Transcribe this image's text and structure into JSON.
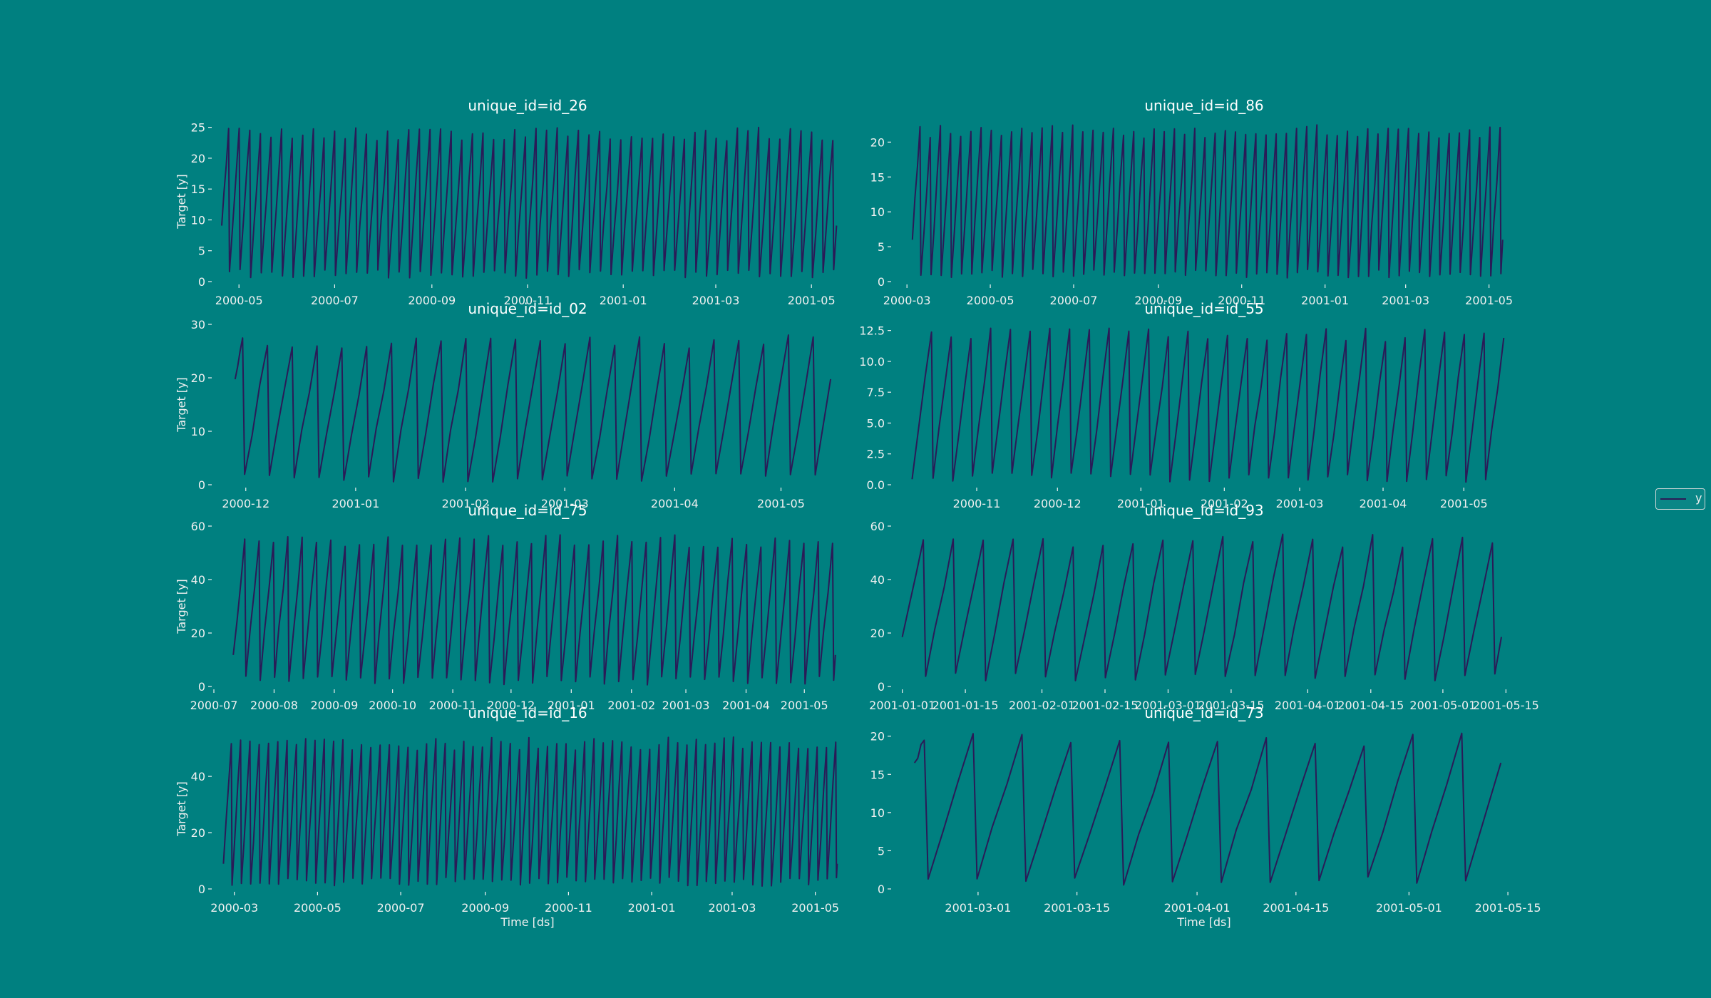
{
  "colors": {
    "background": "#008080",
    "line": "#2a1b57",
    "text": "#f0f0f0"
  },
  "legend": {
    "label": "y"
  },
  "chart_data": [
    {
      "type": "line",
      "title": "unique_id=id_26",
      "xlabel": "",
      "ylabel": "Target [y]",
      "ylim": [
        0,
        26
      ],
      "yticks": [
        0,
        5,
        10,
        15,
        20,
        25
      ],
      "ytick_labels": [
        "0",
        "5",
        "10",
        "15",
        "20",
        "25"
      ],
      "xlim": [
        "2000-04-15",
        "2001-05-20"
      ],
      "xticks": [
        "2000-05-01",
        "2000-07-01",
        "2000-09-01",
        "2000-11-01",
        "2001-01-01",
        "2001-03-01",
        "2001-05-01"
      ],
      "xtick_labels": [
        "2000-05",
        "2000-07",
        "2000-09",
        "2000-11",
        "2001-01",
        "2001-03",
        "2001-05"
      ],
      "x_start": "2000-04-20",
      "x_end": "2001-05-17",
      "cycles": 58,
      "wave_min": 0.5,
      "wave_max": 25,
      "phase": 0.35
    },
    {
      "type": "line",
      "title": "unique_id=id_86",
      "xlabel": "",
      "ylabel": "",
      "ylim": [
        0,
        23
      ],
      "yticks": [
        0,
        5,
        10,
        15,
        20
      ],
      "ytick_labels": [
        "0",
        "5",
        "10",
        "15",
        "20"
      ],
      "xlim": [
        "2000-02-20",
        "2001-05-20"
      ],
      "xticks": [
        "2000-03-01",
        "2000-05-01",
        "2000-07-01",
        "2000-09-01",
        "2000-11-01",
        "2001-01-01",
        "2001-03-01",
        "2001-05-01"
      ],
      "xtick_labels": [
        "2000-03",
        "2000-05",
        "2000-07",
        "2000-09",
        "2000-11",
        "2001-01",
        "2001-03",
        "2001-05"
      ],
      "x_start": "2000-03-05",
      "x_end": "2001-05-11",
      "cycles": 58,
      "wave_min": 0.5,
      "wave_max": 22.5,
      "phase": 0.25
    },
    {
      "type": "line",
      "title": "unique_id=id_02",
      "xlabel": "",
      "ylabel": "Target [y]",
      "ylim": [
        0,
        30
      ],
      "yticks": [
        0,
        10,
        20,
        30
      ],
      "ytick_labels": [
        "0",
        "10",
        "20",
        "30"
      ],
      "xlim": [
        "2000-11-22",
        "2001-05-18"
      ],
      "xticks": [
        "2000-12-01",
        "2001-01-01",
        "2001-02-01",
        "2001-03-01",
        "2001-04-01",
        "2001-05-01"
      ],
      "xtick_labels": [
        "2000-12",
        "2001-01",
        "2001-02",
        "2001-03",
        "2001-04",
        "2001-05"
      ],
      "x_start": "2000-11-28",
      "x_end": "2001-05-15",
      "cycles": 24,
      "wave_min": 0.5,
      "wave_max": 28,
      "phase": 0.7
    },
    {
      "type": "line",
      "title": "unique_id=id_55",
      "xlabel": "",
      "ylabel": "",
      "ylim": [
        0,
        13
      ],
      "yticks": [
        0,
        2.5,
        5,
        7.5,
        10,
        12.5
      ],
      "ytick_labels": [
        "0.0",
        "2.5",
        "5.0",
        "7.5",
        "10.0",
        "12.5"
      ],
      "xlim": [
        "2000-10-01",
        "2001-05-20"
      ],
      "xticks": [
        "2000-11-01",
        "2000-12-01",
        "2001-01-01",
        "2001-02-01",
        "2001-03-01",
        "2001-04-01",
        "2001-05-01"
      ],
      "xtick_labels": [
        "2000-11",
        "2000-12",
        "2001-01",
        "2001-02",
        "2001-03",
        "2001-04",
        "2001-05"
      ],
      "x_start": "2000-10-08",
      "x_end": "2001-05-16",
      "cycles": 30,
      "wave_min": 0.2,
      "wave_max": 12.7,
      "phase": 0.02
    },
    {
      "type": "line",
      "title": "unique_id=id_75",
      "xlabel": "",
      "ylabel": "Target [y]",
      "ylim": [
        0,
        60
      ],
      "yticks": [
        0,
        20,
        40,
        60
      ],
      "ytick_labels": [
        "0",
        "20",
        "40",
        "60"
      ],
      "xlim": [
        "2000-07-01",
        "2001-05-20"
      ],
      "xticks": [
        "2000-07-01",
        "2000-08-01",
        "2000-09-01",
        "2000-10-01",
        "2000-11-01",
        "2000-12-01",
        "2001-01-01",
        "2001-02-01",
        "2001-03-01",
        "2001-04-01",
        "2001-05-01"
      ],
      "xtick_labels": [
        "2000-07",
        "2000-08",
        "2000-09",
        "2000-10",
        "2000-11",
        "2000-12",
        "2001-01",
        "2001-02",
        "2001-03",
        "2001-04",
        "2001-05"
      ],
      "x_start": "2000-07-11",
      "x_end": "2001-05-17",
      "cycles": 42,
      "wave_min": 0.5,
      "wave_max": 57,
      "phase": 0.2
    },
    {
      "type": "line",
      "title": "unique_id=id_93",
      "xlabel": "",
      "ylabel": "",
      "ylim": [
        0,
        60
      ],
      "yticks": [
        0,
        20,
        40,
        60
      ],
      "ytick_labels": [
        "0",
        "20",
        "40",
        "60"
      ],
      "xlim": [
        "2000-12-30",
        "2001-05-17"
      ],
      "xticks": [
        "2001-01-01",
        "2001-01-15",
        "2001-02-01",
        "2001-02-15",
        "2001-03-01",
        "2001-03-15",
        "2001-04-01",
        "2001-04-15",
        "2001-05-01",
        "2001-05-15"
      ],
      "xtick_labels": [
        "2001-01-01",
        "2001-01-15",
        "2001-02-01",
        "2001-02-15",
        "2001-03-01",
        "2001-03-15",
        "2001-04-01",
        "2001-04-15",
        "2001-05-01",
        "2001-05-15"
      ],
      "x_start": "2001-01-01",
      "x_end": "2001-05-14",
      "cycles": 20,
      "wave_min": 2,
      "wave_max": 57,
      "phase": 0.3
    },
    {
      "type": "line",
      "title": "unique_id=id_16",
      "xlabel": "Time [ds]",
      "ylabel": "Target [y]",
      "ylim": [
        0,
        57
      ],
      "yticks": [
        0,
        20,
        40
      ],
      "ytick_labels": [
        "0",
        "20",
        "40"
      ],
      "xlim": [
        "2000-02-15",
        "2001-05-20"
      ],
      "xticks": [
        "2000-03-01",
        "2000-05-01",
        "2000-07-01",
        "2000-09-01",
        "2000-11-01",
        "2001-01-01",
        "2001-03-01",
        "2001-05-01"
      ],
      "xtick_labels": [
        "2000-03",
        "2000-05",
        "2000-07",
        "2000-09",
        "2000-11",
        "2001-01",
        "2001-03",
        "2001-05"
      ],
      "x_start": "2000-02-22",
      "x_end": "2001-05-17",
      "cycles": 66,
      "wave_min": 1,
      "wave_max": 54,
      "phase": 0.15
    },
    {
      "type": "line",
      "title": "unique_id=id_73",
      "xlabel": "Time [ds]",
      "ylabel": "",
      "ylim": [
        0,
        21
      ],
      "yticks": [
        0,
        5,
        10,
        15,
        20
      ],
      "ytick_labels": [
        "0",
        "5",
        "10",
        "15",
        "20"
      ],
      "xlim": [
        "2001-02-17",
        "2001-05-16"
      ],
      "xticks": [
        "2001-03-01",
        "2001-03-15",
        "2001-04-01",
        "2001-04-15",
        "2001-05-01",
        "2001-05-15"
      ],
      "xtick_labels": [
        "2001-03-01",
        "2001-03-15",
        "2001-04-01",
        "2001-04-15",
        "2001-05-01",
        "2001-05-15"
      ],
      "x_start": "2001-02-20",
      "x_end": "2001-05-14",
      "cycles": 12,
      "wave_min": 0.5,
      "wave_max": 20.5,
      "phase": 0.8
    }
  ]
}
